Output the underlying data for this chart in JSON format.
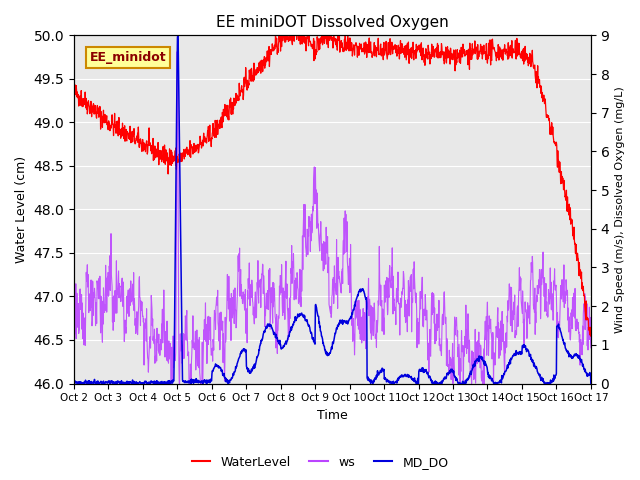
{
  "title": "EE miniDOT Dissolved Oxygen",
  "xlabel": "Time",
  "ylabel_left": "Water Level (cm)",
  "ylabel_right": "Wind Speed (m/s), Dissolved Oxygen (mg/L)",
  "annotation": "EE_minidot",
  "ylim_left": [
    46.0,
    50.0
  ],
  "ylim_right": [
    0.0,
    9.0
  ],
  "yticks_left": [
    46.0,
    46.5,
    47.0,
    47.5,
    48.0,
    48.5,
    49.0,
    49.5,
    50.0
  ],
  "yticks_right": [
    0.0,
    1.0,
    2.0,
    3.0,
    4.0,
    5.0,
    6.0,
    7.0,
    8.0,
    9.0
  ],
  "xtick_labels": [
    "Oct 2",
    "Oct 3",
    "Oct 4",
    "Oct 5",
    "Oct 6",
    "Oct 7",
    "Oct 8",
    "Oct 9",
    "Oct 10",
    "Oct 11",
    "Oct 12",
    "Oct 13",
    "Oct 14",
    "Oct 15",
    "Oct 16",
    "Oct 17"
  ],
  "colors": {
    "WaterLevel": "#ff0000",
    "ws": "#bb44ff",
    "MD_DO": "#0000dd",
    "background": "#e8e8e8",
    "annotation_bg": "#ffff99",
    "annotation_border": "#cc8800"
  },
  "legend_entries": [
    "WaterLevel",
    "ws",
    "MD_DO"
  ],
  "num_days": 15,
  "seed": 42
}
